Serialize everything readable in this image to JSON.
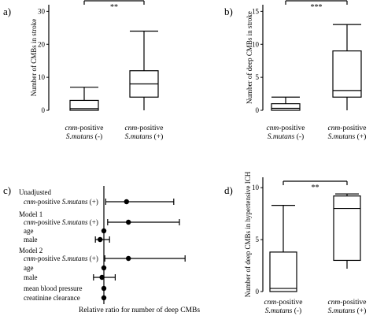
{
  "chart_data": [
    {
      "panel": "a)",
      "type": "boxplot",
      "ylabel": "Number of CMBs in stroke",
      "ylim": [
        0,
        32
      ],
      "yticks": [
        0,
        10,
        20,
        30
      ],
      "categories": [
        {
          "line1": "cnm-positive",
          "line2": "S.mutans (-)"
        },
        {
          "line1": "cnm-positive",
          "line2": "S.mutans (+)"
        }
      ],
      "boxes": [
        {
          "whisker_low": 0,
          "q1": 0,
          "median": 0.5,
          "q3": 3,
          "whisker_high": 7
        },
        {
          "whisker_low": 0,
          "q1": 4,
          "median": 8,
          "q3": 12,
          "whisker_high": 24
        }
      ],
      "significance": "**"
    },
    {
      "panel": "b)",
      "type": "boxplot",
      "ylabel": "Number of deep CMBs in stroke",
      "ylim": [
        0,
        16
      ],
      "yticks": [
        0,
        5,
        10,
        15
      ],
      "categories": [
        {
          "line1": "cnm-positive",
          "line2": "S.mutans (-)"
        },
        {
          "line1": "cnm-positive",
          "line2": "S.mutans (+)"
        }
      ],
      "boxes": [
        {
          "whisker_low": 0,
          "q1": 0,
          "median": 0.3,
          "q3": 1,
          "whisker_high": 2
        },
        {
          "whisker_low": 0,
          "q1": 2,
          "median": 3,
          "q3": 9,
          "whisker_high": 13
        }
      ],
      "significance": "***"
    },
    {
      "panel": "c)",
      "type": "forest",
      "xlabel": "Relative ratio for number of deep CMBs",
      "xlim": [
        0,
        6
      ],
      "reference": 1,
      "rows": [
        {
          "label": "Unadjusted",
          "indent": 0,
          "est": null
        },
        {
          "label_italic": "cnm",
          "label_rest": "-positive ",
          "label_italic2": "S.mutans",
          "label_end": " (+)",
          "indent": 1,
          "est": 2.2,
          "lo": 1.1,
          "hi": 4.7
        },
        {
          "label": "Model 1",
          "indent": 0,
          "est": null
        },
        {
          "label_italic": "cnm",
          "label_rest": "-positive ",
          "label_italic2": "S.mutans",
          "label_end": " (+)",
          "indent": 1,
          "est": 2.3,
          "lo": 1.2,
          "hi": 5.0
        },
        {
          "label": "age",
          "indent": 1,
          "est": 1.0,
          "lo": 0.97,
          "hi": 1.03
        },
        {
          "label": "male",
          "indent": 1,
          "est": 0.8,
          "lo": 0.55,
          "hi": 1.3
        },
        {
          "label": "Model 2",
          "indent": 0,
          "est": null
        },
        {
          "label_italic": "cnm",
          "label_rest": "-positive ",
          "label_italic2": "S.mutans",
          "label_end": " (+)",
          "indent": 1,
          "est": 2.3,
          "lo": 1.05,
          "hi": 5.3
        },
        {
          "label": "age",
          "indent": 1,
          "est": 1.0,
          "lo": 0.97,
          "hi": 1.03
        },
        {
          "label": "male",
          "indent": 1,
          "est": 0.9,
          "lo": 0.45,
          "hi": 1.6
        },
        {
          "label": "mean blood pressure",
          "indent": 1,
          "est": 1.0,
          "lo": 0.98,
          "hi": 1.02
        },
        {
          "label": "creatinine clearance",
          "indent": 1,
          "est": 1.0,
          "lo": 0.99,
          "hi": 1.01
        }
      ]
    },
    {
      "panel": "d)",
      "type": "boxplot",
      "ylabel": "Number of deep CMBs in hypertensive ICH",
      "ylim": [
        0,
        11
      ],
      "yticks": [
        0,
        5,
        10
      ],
      "categories": [
        {
          "line1": "cnm-positive",
          "line2": "S.mutans (-)"
        },
        {
          "line1": "cnm-positive",
          "line2": "S.mutans (+)"
        }
      ],
      "boxes": [
        {
          "whisker_low": 0,
          "q1": 0,
          "median": 0.3,
          "q3": 3.8,
          "whisker_high": 8.3
        },
        {
          "whisker_low": 2.2,
          "q1": 3,
          "median": 8,
          "q3": 9.2,
          "whisker_high": 9.4
        }
      ],
      "significance": "**"
    }
  ]
}
